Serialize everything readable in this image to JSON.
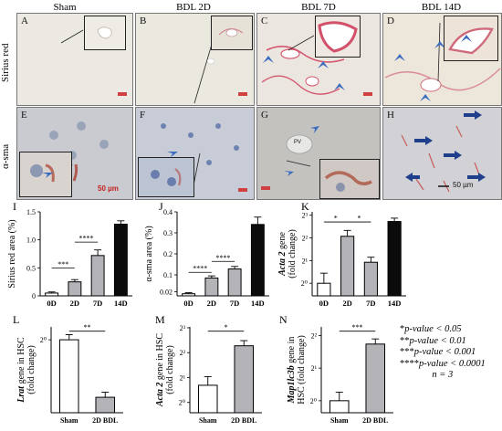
{
  "columns": [
    "Sham",
    "BDL 2D",
    "BDL 7D",
    "BDL 14D"
  ],
  "rows": [
    "Sirius red",
    "α-sma"
  ],
  "micrographs": [
    {
      "letter": "A"
    },
    {
      "letter": "B"
    },
    {
      "letter": "C"
    },
    {
      "letter": "D"
    },
    {
      "letter": "E",
      "scale": "50 µm"
    },
    {
      "letter": "F"
    },
    {
      "letter": "G",
      "pv": "PV"
    },
    {
      "letter": "H",
      "scale": "50 µm"
    }
  ],
  "colors": {
    "sirius_bg": "#ece8e1",
    "stain_red": "#c8455a",
    "asma_bg": "#bfc6cf",
    "nuclei": "#7488a9",
    "arrow": "#3c6cc0",
    "bar_white": "#ffffff",
    "bar_grey": "#b4b4b8",
    "bar_black": "#0b0b0b"
  },
  "chart_data": [
    {
      "panel": "I",
      "type": "bar",
      "categories": [
        "0D",
        "2D",
        "7D",
        "14D"
      ],
      "values": [
        0.05,
        0.25,
        0.72,
        1.28
      ],
      "errors": [
        0.02,
        0.04,
        0.1,
        0.06
      ],
      "ylabel": "Sirius red area (%)",
      "yticks": [
        "0",
        "0.5",
        "1.0",
        "1.5"
      ],
      "ylim": [
        0,
        1.5
      ],
      "sig": [
        {
          "from": 0,
          "to": 1,
          "label": "***"
        },
        {
          "from": 1,
          "to": 2,
          "label": "****"
        }
      ]
    },
    {
      "panel": "J",
      "type": "bar",
      "categories": [
        "0D",
        "2D",
        "7D",
        "14D"
      ],
      "values": [
        0.01,
        0.085,
        0.128,
        0.34
      ],
      "errors": [
        0.005,
        0.01,
        0.012,
        0.035
      ],
      "ylabel": "α-sma area (%)",
      "yticks": [
        "0.02",
        "0.1",
        "0.2",
        "0.3",
        "0.4"
      ],
      "ylim": [
        0,
        0.4
      ],
      "sig": [
        {
          "from": 0,
          "to": 1,
          "label": "****"
        },
        {
          "from": 1,
          "to": 2,
          "label": "****"
        }
      ]
    },
    {
      "panel": "K",
      "type": "bar",
      "categories": [
        "0D",
        "2D",
        "7D",
        "14D"
      ],
      "values": [
        1.0,
        4.2,
        1.9,
        6.6
      ],
      "ylabel_italic": "Acta 2",
      "ylabel_rest": " gene",
      "ylabel2": "(fold change)",
      "yticks": [
        "2⁰",
        "2¹",
        "2²",
        "2³"
      ],
      "sig": [
        {
          "from": 0,
          "to": 1,
          "label": "*"
        },
        {
          "from": 1,
          "to": 2,
          "label": "*"
        }
      ]
    },
    {
      "panel": "L",
      "type": "bar",
      "categories": [
        "Sham",
        "2D BDL"
      ],
      "ylabel_italic": "Lrat",
      "ylabel_rest": " gene in HSC",
      "ylabel2": "(fold change)",
      "yticks": [
        "2⁰"
      ],
      "sig": [
        {
          "from": 0,
          "to": 1,
          "label": "**"
        }
      ]
    },
    {
      "panel": "M",
      "type": "bar",
      "categories": [
        "Sham",
        "2D BDL"
      ],
      "ylabel_italic": "Acta 2",
      "ylabel_rest": " gene in HSC",
      "ylabel2": "(fold change)",
      "yticks": [
        "2⁰",
        "2¹",
        "2²",
        "2³"
      ],
      "sig": [
        {
          "from": 0,
          "to": 1,
          "label": "*"
        }
      ]
    },
    {
      "panel": "N",
      "type": "bar",
      "categories": [
        "Sham",
        "2D BDL"
      ],
      "ylabel_italic": "Map1lc3b",
      "ylabel_rest": " gene in",
      "ylabel2": "HSC (fold change)",
      "yticks": [
        "2⁰",
        "2¹",
        "2²"
      ],
      "sig": [
        {
          "from": 0,
          "to": 1,
          "label": "***"
        }
      ]
    }
  ],
  "legend": [
    {
      "stars": "*",
      "text": "p-value < 0.05"
    },
    {
      "stars": "**",
      "text": "p-value < 0.01"
    },
    {
      "stars": "***",
      "text": "p-value < 0.001"
    },
    {
      "stars": "****",
      "text": "p-value < 0.0001"
    }
  ],
  "legend_n": "n = 3"
}
